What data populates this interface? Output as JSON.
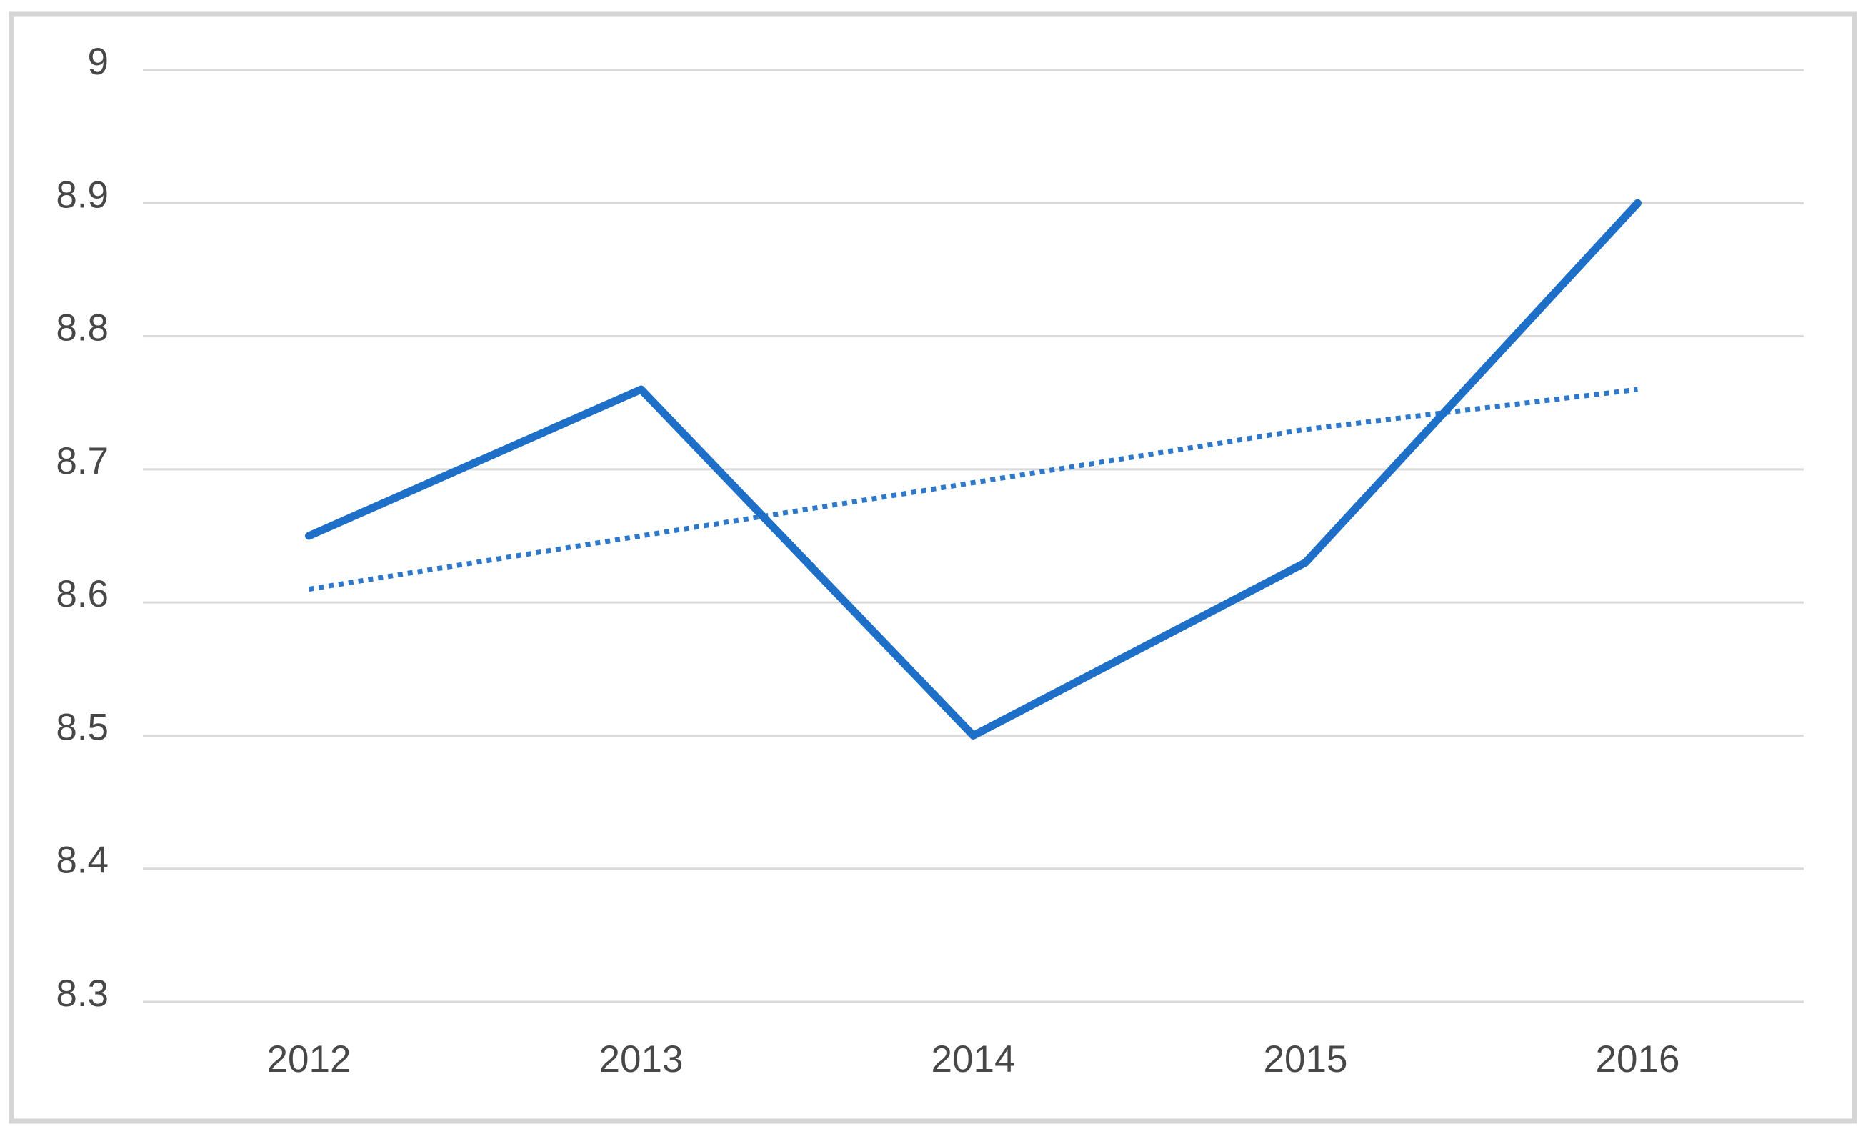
{
  "chart_data": {
    "type": "line",
    "title": "",
    "xlabel": "",
    "ylabel": "",
    "categories": [
      "2012",
      "2013",
      "2014",
      "2015",
      "2016"
    ],
    "series": [
      {
        "name": "main-series",
        "style": "solid",
        "color": "#1E6FC8",
        "stroke_width": 11,
        "values": [
          8.65,
          8.76,
          8.5,
          8.63,
          8.9
        ]
      },
      {
        "name": "linear-trendline",
        "style": "dotted",
        "color": "#2E78CC",
        "stroke_width": 7,
        "values": [
          8.61,
          8.65,
          8.69,
          8.73,
          8.76
        ]
      }
    ],
    "ylim": [
      8.3,
      9.0
    ],
    "y_ticks": [
      {
        "label": "9",
        "value": 9.0
      },
      {
        "label": "8.9",
        "value": 8.9
      },
      {
        "label": "8.8",
        "value": 8.8
      },
      {
        "label": "8.7",
        "value": 8.7
      },
      {
        "label": "8.6",
        "value": 8.6
      },
      {
        "label": "8.5",
        "value": 8.5
      },
      {
        "label": "8.4",
        "value": 8.4
      },
      {
        "label": "8.3",
        "value": 8.3
      }
    ],
    "grid": "horizontal",
    "legend_position": "none"
  },
  "style": {
    "gridline_color": "#d9d9d9",
    "frame_border_color": "#d5d5d5",
    "axis_label_color": "#474747",
    "background_color": "#ffffff"
  }
}
